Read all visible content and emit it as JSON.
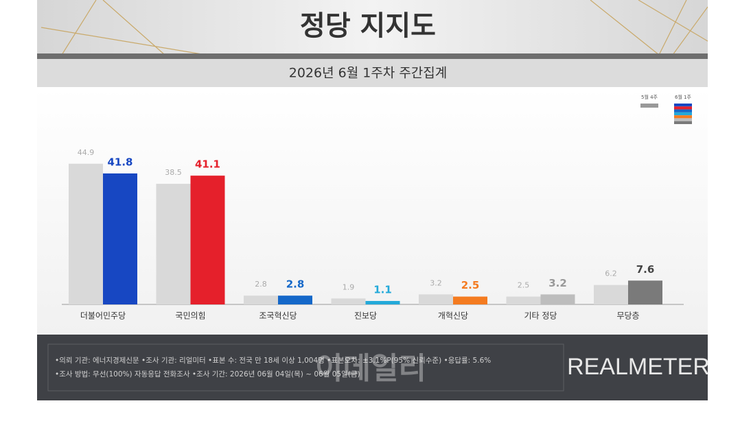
{
  "chart_data": {
    "type": "bar",
    "title": "정당 지지도",
    "subtitle": "2026년 6월 1주차 주간집계",
    "categories": [
      "더불어민주당",
      "국민의힘",
      "조국혁신당",
      "진보당",
      "개혁신당",
      "기타 정당",
      "무당층"
    ],
    "series": [
      {
        "name": "5월 4주",
        "color": "#d9d9d9",
        "values": [
          44.9,
          38.5,
          2.8,
          1.9,
          3.2,
          2.5,
          6.2
        ]
      },
      {
        "name": "6월 1주",
        "colors": [
          "#1747c2",
          "#e5202b",
          "#1568c9",
          "#23a9d9",
          "#f47b20",
          "#bdbdbd",
          "#7a7a7a"
        ],
        "values": [
          41.8,
          41.1,
          2.8,
          1.1,
          2.5,
          3.2,
          7.6
        ]
      }
    ],
    "notes": [
      "•의뢰 기관: 에너지경제신문 •조사 기관: 리얼미터 •표본 수: 전국 만 18세 이상 1,004명 •표본오차: ±3.1%P(95% 신뢰수준) •응답률: 5.6%",
      "•조사 방법: 무선(100%) 자동응답 전화조사 •조사 기간: 2026년 06월 04일(목) ~ 06월 05일(금)"
    ],
    "brand": "REALMETER",
    "watermark": "이데일리"
  }
}
